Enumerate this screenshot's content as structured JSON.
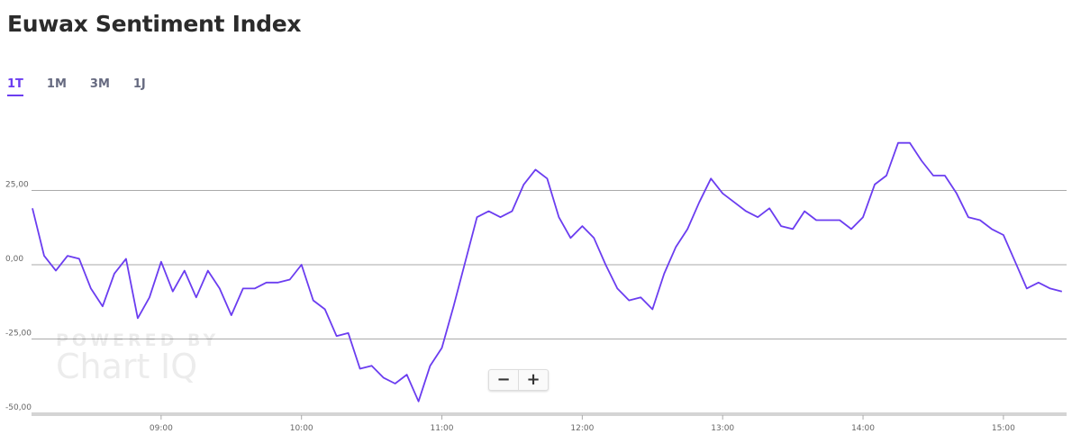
{
  "title": "Euwax Sentiment Index",
  "tabs": [
    "1T",
    "1M",
    "3M",
    "1J"
  ],
  "active_tab": 0,
  "watermark": {
    "top": "POWERED BY",
    "brand": "Chart",
    "brand2": "IQ"
  },
  "zoom": [
    "−",
    "+"
  ],
  "chart_data": {
    "type": "line",
    "color": "#6b3df0",
    "grid": true,
    "x": [
      "08:05",
      "08:10",
      "08:15",
      "08:20",
      "08:25",
      "08:30",
      "08:35",
      "08:40",
      "08:45",
      "08:50",
      "08:55",
      "09:00",
      "09:05",
      "09:10",
      "09:15",
      "09:20",
      "09:25",
      "09:30",
      "09:35",
      "09:40",
      "09:45",
      "09:50",
      "09:55",
      "10:00",
      "10:05",
      "10:10",
      "10:15",
      "10:20",
      "10:25",
      "10:30",
      "10:35",
      "10:40",
      "10:45",
      "10:50",
      "10:55",
      "11:00",
      "11:05",
      "11:10",
      "11:15",
      "11:20",
      "11:25",
      "11:30",
      "11:35",
      "11:40",
      "11:45",
      "11:50",
      "11:55",
      "12:00",
      "12:05",
      "12:10",
      "12:15",
      "12:20",
      "12:25",
      "12:30",
      "12:35",
      "12:40",
      "12:45",
      "12:50",
      "12:55",
      "13:00",
      "13:05",
      "13:10",
      "13:15",
      "13:20",
      "13:25",
      "13:30",
      "13:35",
      "13:40",
      "13:45",
      "13:50",
      "13:55",
      "14:00",
      "14:05",
      "14:10",
      "14:15",
      "14:20",
      "14:25",
      "14:30",
      "14:35",
      "14:40",
      "14:45",
      "14:50",
      "14:55",
      "15:00",
      "15:05",
      "15:10",
      "15:15",
      "15:20",
      "15:25"
    ],
    "values": [
      19,
      3,
      -2,
      3,
      2,
      -8,
      -14,
      -3,
      2,
      -18,
      -11,
      1,
      -9,
      -2,
      -11,
      -2,
      -8,
      -17,
      -8,
      -8,
      -6,
      -6,
      -5,
      0,
      -12,
      -15,
      -24,
      -23,
      -35,
      -34,
      -38,
      -40,
      -37,
      -46,
      -34,
      -28,
      -14,
      1,
      16,
      18,
      16,
      18,
      27,
      32,
      29,
      16,
      9,
      13,
      9,
      0,
      -8,
      -12,
      -11,
      -15,
      -3,
      6,
      12,
      21,
      29,
      24,
      21,
      18,
      16,
      19,
      13,
      12,
      18,
      15,
      15,
      15,
      12,
      16,
      27,
      30,
      41,
      41,
      35,
      30,
      30,
      24,
      16,
      15,
      12,
      10,
      1,
      -8,
      -6,
      -8,
      -9
    ],
    "xlim": [
      "08:05",
      "15:27"
    ],
    "xticks": [
      "09:00",
      "10:00",
      "11:00",
      "12:00",
      "13:00",
      "14:00",
      "15:00"
    ],
    "ylim": [
      -50,
      50
    ],
    "yticks": [
      {
        "value": -50,
        "label": "-50,00"
      },
      {
        "value": -25,
        "label": "-25,00"
      },
      {
        "value": 0,
        "label": "0,00"
      },
      {
        "value": 25,
        "label": "25,00"
      }
    ]
  }
}
